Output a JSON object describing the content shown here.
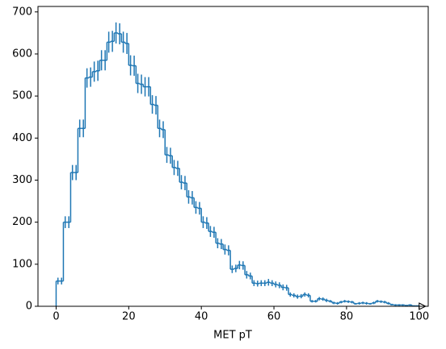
{
  "chart_data": {
    "type": "histogram",
    "xlabel": "MET pT",
    "histtype": "step",
    "color": "#1f77b4",
    "bins": [
      0,
      1,
      2,
      3,
      4,
      5,
      6,
      7,
      8,
      9,
      10,
      11,
      12,
      13,
      14,
      15,
      16,
      17,
      18,
      19,
      20,
      21,
      22,
      23,
      24,
      25,
      26,
      27,
      28,
      29,
      30,
      31,
      32,
      33,
      34,
      35,
      36,
      37,
      38,
      39,
      40,
      41,
      42,
      43,
      44,
      45,
      46,
      47,
      48,
      49,
      50,
      51,
      52,
      53,
      54,
      55,
      56,
      57,
      58,
      59,
      60,
      61,
      62,
      63,
      64,
      65,
      66,
      67,
      68,
      69,
      70,
      71,
      72,
      73,
      74,
      75,
      76,
      77,
      78,
      79,
      80,
      81,
      82,
      83,
      84,
      85,
      86,
      87,
      88,
      89,
      90,
      91,
      92,
      93,
      94,
      95,
      96,
      97,
      98,
      99,
      100
    ],
    "values": [
      60,
      60,
      200,
      200,
      318,
      318,
      423,
      423,
      543,
      545,
      558,
      560,
      585,
      585,
      628,
      630,
      650,
      648,
      628,
      625,
      573,
      572,
      530,
      528,
      522,
      522,
      480,
      478,
      423,
      420,
      360,
      358,
      330,
      328,
      295,
      293,
      260,
      258,
      235,
      233,
      200,
      198,
      178,
      176,
      150,
      148,
      135,
      133,
      88,
      90,
      98,
      97,
      75,
      72,
      55,
      54,
      55,
      55,
      57,
      55,
      52,
      50,
      45,
      44,
      28,
      26,
      23,
      24,
      28,
      26,
      12,
      12,
      18,
      17,
      14,
      12,
      8,
      7,
      10,
      12,
      11,
      10,
      6,
      7,
      8,
      7,
      6,
      8,
      12,
      11,
      10,
      7,
      4,
      3,
      3,
      3,
      2,
      3,
      1,
      1
    ],
    "errors": [
      8,
      8,
      14,
      14,
      18,
      18,
      21,
      21,
      23,
      23,
      24,
      24,
      24,
      24,
      25,
      25,
      25,
      25,
      25,
      25,
      24,
      24,
      23,
      23,
      23,
      23,
      22,
      22,
      21,
      20,
      19,
      19,
      18,
      18,
      17,
      17,
      16,
      16,
      15,
      15,
      14,
      14,
      13,
      13,
      12,
      12,
      12,
      12,
      9,
      9,
      10,
      10,
      9,
      8,
      7,
      7,
      7,
      7,
      8,
      7,
      7,
      7,
      7,
      7,
      5,
      5,
      5,
      5,
      5,
      5,
      3,
      3,
      4,
      4,
      4,
      3,
      3,
      3,
      3,
      3,
      3,
      3,
      2,
      3,
      3,
      3,
      2,
      3,
      3,
      3,
      3,
      3,
      2,
      2,
      2,
      2,
      1,
      2,
      1,
      1
    ],
    "xlim": [
      -5,
      102.5
    ],
    "ylim": [
      0,
      713
    ],
    "xticks": [
      0,
      20,
      40,
      60,
      80,
      100
    ],
    "yticks": [
      0,
      100,
      200,
      300,
      400,
      500,
      600,
      700
    ]
  }
}
